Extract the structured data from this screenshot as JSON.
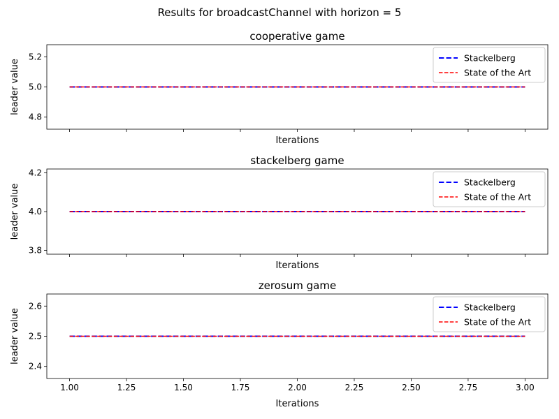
{
  "figure": {
    "suptitle": "Results for broadcastChannel with horizon = 5"
  },
  "chart_data": [
    {
      "type": "line",
      "title": "cooperative game",
      "xlabel": "Iterations",
      "ylabel": "leader value",
      "xlim": [
        0.9,
        3.1
      ],
      "ylim": [
        4.72,
        5.28
      ],
      "xticks": [
        1.0,
        1.25,
        1.5,
        1.75,
        2.0,
        2.25,
        2.5,
        2.75,
        3.0
      ],
      "xtick_labels_visible": false,
      "yticks": [
        4.8,
        5.0,
        5.2
      ],
      "ytick_labels": [
        "4.8",
        "5.0",
        "5.2"
      ],
      "legend": "top-right",
      "grid": false,
      "series": [
        {
          "name": "Stackelberg",
          "x": [
            1,
            2,
            3
          ],
          "y": [
            5.0,
            5.0,
            5.0
          ],
          "color": "#0000ff",
          "style": "dashed",
          "linewidth": 2
        },
        {
          "name": "State of the Art",
          "x": [
            1,
            2,
            3
          ],
          "y": [
            5.0,
            5.0,
            5.0
          ],
          "color": "#ff0000",
          "style": "dashed",
          "linewidth": 1.5
        }
      ]
    },
    {
      "type": "line",
      "title": "stackelberg game",
      "xlabel": "Iterations",
      "ylabel": "leader value",
      "xlim": [
        0.9,
        3.1
      ],
      "ylim": [
        3.78,
        4.22
      ],
      "xticks": [
        1.0,
        1.25,
        1.5,
        1.75,
        2.0,
        2.25,
        2.5,
        2.75,
        3.0
      ],
      "xtick_labels_visible": false,
      "yticks": [
        3.8,
        4.0,
        4.2
      ],
      "ytick_labels": [
        "3.8",
        "4.0",
        "4.2"
      ],
      "legend": "top-right",
      "grid": false,
      "series": [
        {
          "name": "Stackelberg",
          "x": [
            1,
            2,
            3
          ],
          "y": [
            4.0,
            4.0,
            4.0
          ],
          "color": "#0000ff",
          "style": "dashed",
          "linewidth": 2
        },
        {
          "name": "State of the Art",
          "x": [
            1,
            2,
            3
          ],
          "y": [
            4.0,
            4.0,
            4.0
          ],
          "color": "#ff0000",
          "style": "dashed",
          "linewidth": 1.5
        }
      ]
    },
    {
      "type": "line",
      "title": "zerosum game",
      "xlabel": "Iterations",
      "ylabel": "leader value",
      "xlim": [
        0.9,
        3.1
      ],
      "ylim": [
        2.36,
        2.64
      ],
      "xticks": [
        1.0,
        1.25,
        1.5,
        1.75,
        2.0,
        2.25,
        2.5,
        2.75,
        3.0
      ],
      "xtick_labels_visible": true,
      "xtick_labels": [
        "1.00",
        "1.25",
        "1.50",
        "1.75",
        "2.00",
        "2.25",
        "2.50",
        "2.75",
        "3.00"
      ],
      "yticks": [
        2.4,
        2.5,
        2.6
      ],
      "ytick_labels": [
        "2.4",
        "2.5",
        "2.6"
      ],
      "legend": "top-right",
      "grid": false,
      "series": [
        {
          "name": "Stackelberg",
          "x": [
            1,
            2,
            3
          ],
          "y": [
            2.5,
            2.5,
            2.5
          ],
          "color": "#0000ff",
          "style": "dashed",
          "linewidth": 2
        },
        {
          "name": "State of the Art",
          "x": [
            1,
            2,
            3
          ],
          "y": [
            2.5,
            2.5,
            2.5
          ],
          "color": "#ff0000",
          "style": "dashed",
          "linewidth": 1.5
        }
      ]
    }
  ]
}
